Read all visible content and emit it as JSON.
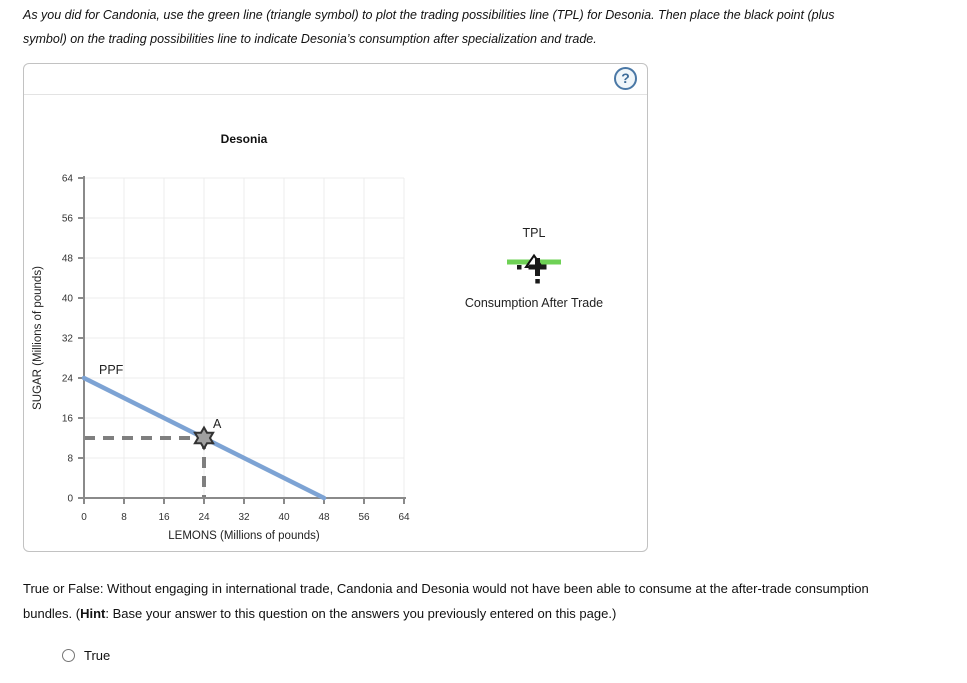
{
  "instruction": {
    "line1": "As you did for Candonia, use the green line (triangle symbol) to plot the trading possibilities line (TPL) for Desonia. Then place the black point (plus",
    "line2": "symbol) on the trading possibilities line to indicate Desonia’s consumption after specialization and trade."
  },
  "panel": {
    "help_label": "?",
    "legend": [
      {
        "label": "TPL",
        "symbol": "green-line-triangle",
        "color": "#6ed155"
      },
      {
        "label": "Consumption After Trade",
        "symbol": "black-plus-dashes",
        "color": "#1a1a1a"
      }
    ]
  },
  "chart_data": {
    "type": "line",
    "title": "Desonia",
    "xlabel": "LEMONS (Millions of pounds)",
    "ylabel": "SUGAR (Millions of pounds)",
    "xlim": [
      0,
      64
    ],
    "ylim": [
      0,
      64
    ],
    "x_ticks": [
      0,
      8,
      16,
      24,
      32,
      40,
      48,
      56,
      64
    ],
    "y_ticks": [
      0,
      8,
      16,
      24,
      32,
      40,
      48,
      56,
      64
    ],
    "grid": true,
    "grid_color": "#ececec",
    "axis_color": "#8a8a8a",
    "tick_label_color": "#333333",
    "series": [
      {
        "name": "PPF",
        "color": "#7da3d4",
        "width": 4.5,
        "points": [
          [
            0,
            24
          ],
          [
            48,
            0
          ]
        ],
        "label_pos": [
          3,
          24.8
        ]
      }
    ],
    "points": [
      {
        "label": "A",
        "x": 24,
        "y": 12,
        "marker": "star6",
        "fill": "#a0a0a0",
        "stroke": "#333333",
        "droplines": true,
        "dropline_color": "#7f7f7f"
      }
    ]
  },
  "question": {
    "line1": "True or False: Without engaging in international trade, Candonia and Desonia would not have been able to consume at the after-trade consumption",
    "line2_pre": "bundles. (",
    "hint_label": "Hint",
    "line2_post": ": Base your answer to this question on the answers you previously entered on this page.)"
  },
  "options": [
    {
      "label": "True"
    }
  ]
}
